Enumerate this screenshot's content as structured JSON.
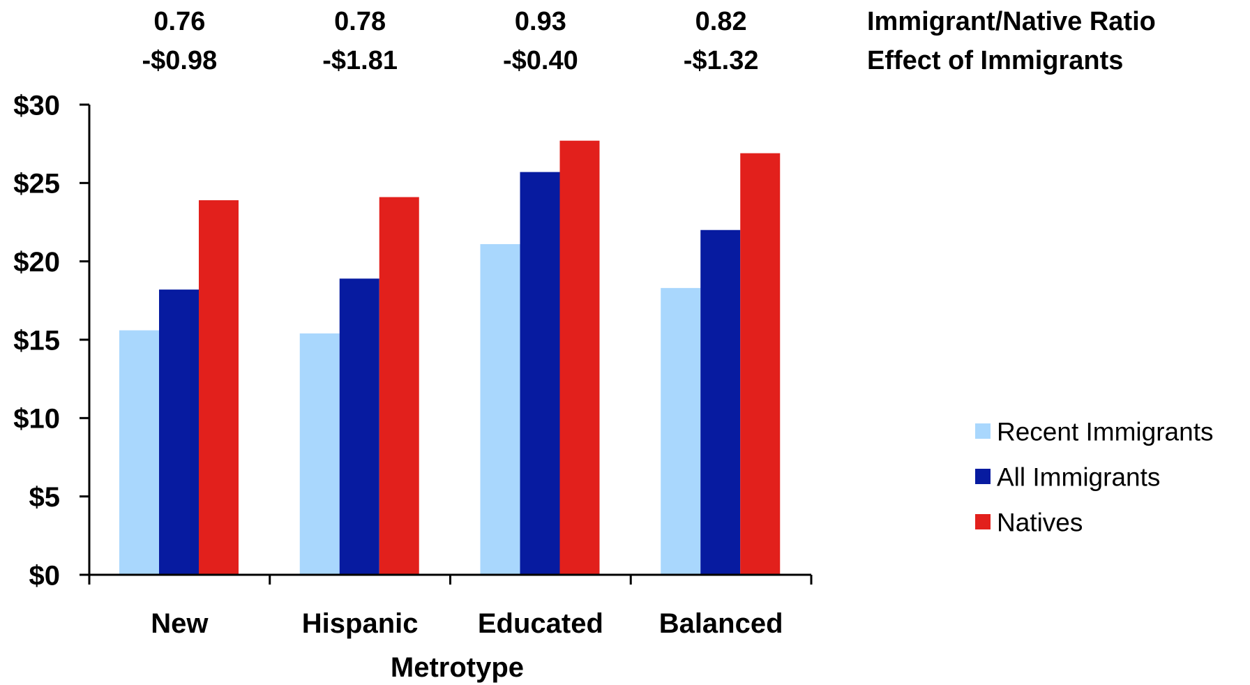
{
  "chart_data": {
    "type": "bar",
    "xlabel": "Metrotype",
    "ylabel": "",
    "ylim": [
      0,
      30
    ],
    "ytick_values": [
      0,
      5,
      10,
      15,
      20,
      25,
      30
    ],
    "ytick_labels": [
      "$0",
      "$5",
      "$10",
      "$15",
      "$20",
      "$25",
      "$30"
    ],
    "categories": [
      "New",
      "Hispanic",
      "Educated",
      "Balanced"
    ],
    "series": [
      {
        "name": "Recent Immigrants",
        "color": "#a9d7fd",
        "values": [
          15.6,
          15.4,
          21.1,
          18.3
        ]
      },
      {
        "name": "All Immigrants",
        "color": "#071ba0",
        "values": [
          18.2,
          18.9,
          25.7,
          22.0
        ]
      },
      {
        "name": "Natives",
        "color": "#e2201c",
        "values": [
          23.9,
          24.1,
          27.7,
          26.9
        ]
      }
    ],
    "top_annotations": {
      "ratio_label": "Immigrant/Native Ratio",
      "effect_label": "Effect of Immigrants",
      "ratio_values": [
        "0.76",
        "0.78",
        "0.93",
        "0.82"
      ],
      "effect_values": [
        "-$0.98",
        "-$1.81",
        "-$0.40",
        "-$1.32"
      ]
    },
    "legend_position": "right",
    "grid": false
  }
}
